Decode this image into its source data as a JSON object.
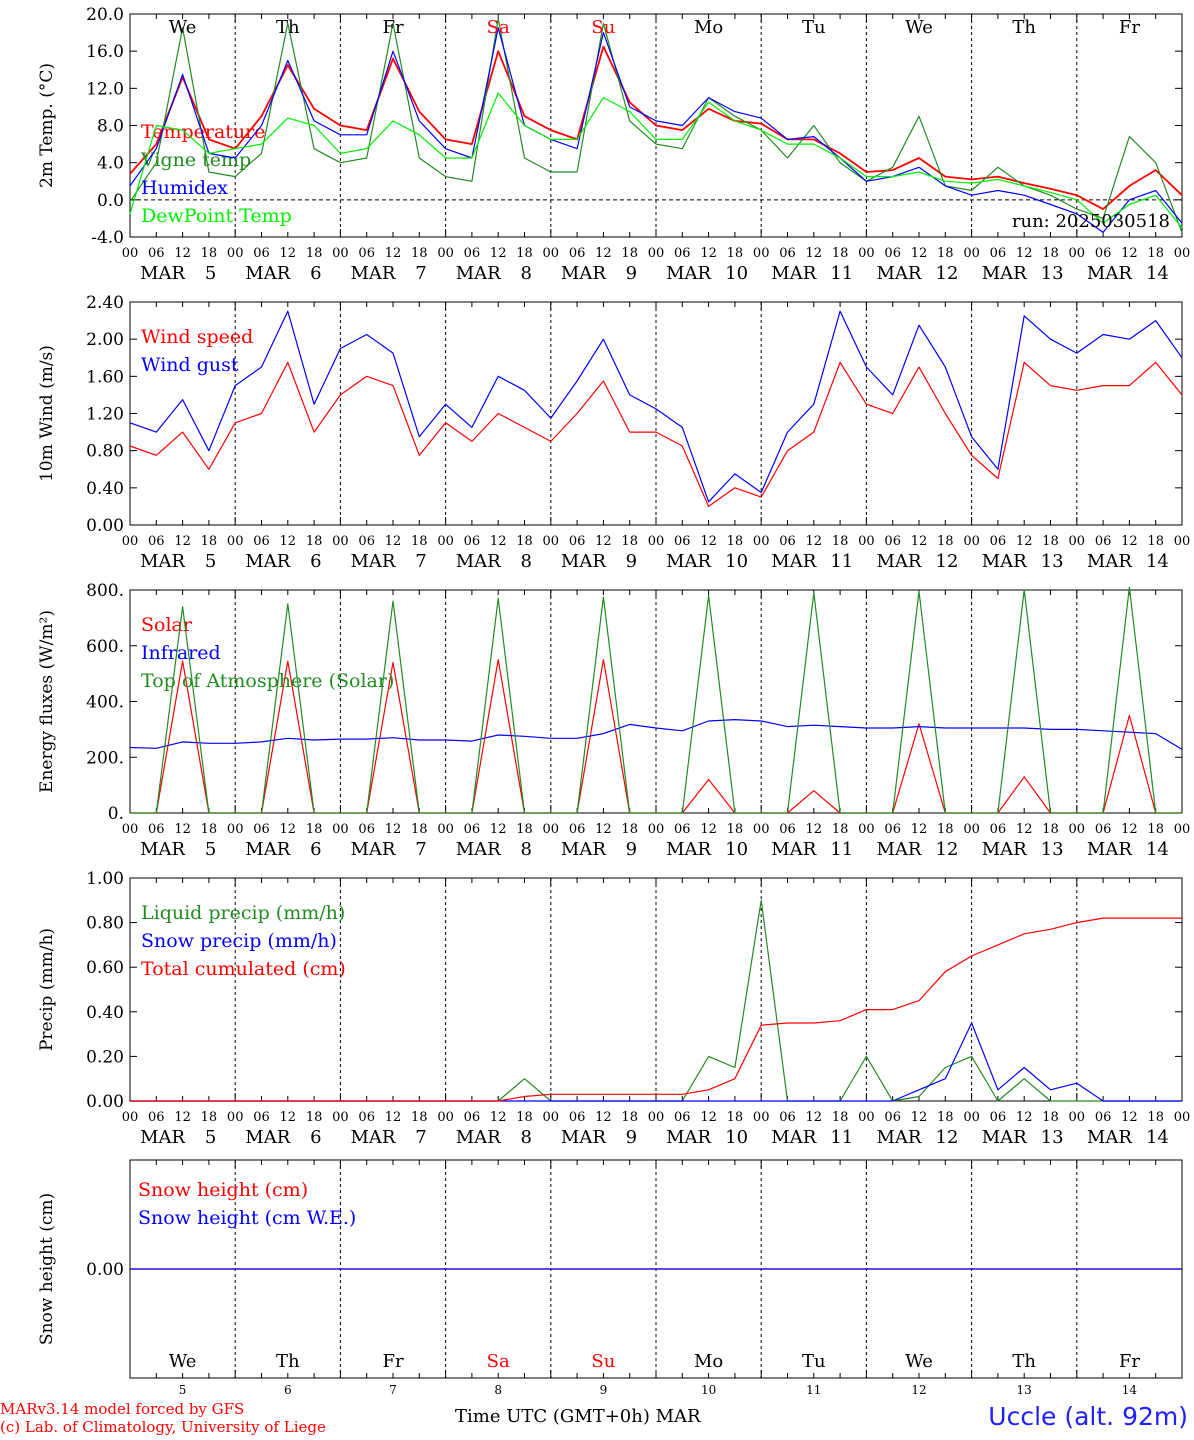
{
  "chart_data": [
    {
      "type": "line",
      "ylabel": "2m Temp. (°C)",
      "ylim": [
        -4,
        20
      ],
      "yticks": [
        "-4.0",
        "0.0",
        "4.0",
        "8.0",
        "12.0",
        "16.0",
        "20.0"
      ],
      "zero_line": true,
      "run_label": "run: 2025030518",
      "x_hours": [
        0,
        6,
        12,
        18,
        24,
        30,
        36,
        42,
        48,
        54,
        60,
        66,
        72,
        78,
        84,
        90,
        96,
        102,
        108,
        114,
        120,
        126,
        132,
        138,
        144,
        150,
        156,
        162,
        168,
        174,
        180,
        186,
        192,
        198,
        204,
        210,
        216,
        222,
        228,
        234,
        240
      ],
      "series": [
        {
          "name": "Temperature",
          "color": "#ff0000",
          "values": [
            2.8,
            6.0,
            13.2,
            6.5,
            5.5,
            9.0,
            14.5,
            9.8,
            8.0,
            7.5,
            15.2,
            9.5,
            6.5,
            6.0,
            16.0,
            9.0,
            7.5,
            6.5,
            16.5,
            10.5,
            8.0,
            7.5,
            9.8,
            8.5,
            8.2,
            6.5,
            6.5,
            5.0,
            3.0,
            3.2,
            4.5,
            2.5,
            2.2,
            2.5,
            1.8,
            1.2,
            0.5,
            -1.0,
            1.5,
            3.2,
            0.5
          ]
        },
        {
          "name": "Vigne temp",
          "color": "#228b22",
          "values": [
            -0.2,
            4.0,
            18.5,
            3.0,
            2.5,
            5.0,
            19.0,
            5.5,
            4.0,
            4.5,
            19.0,
            4.5,
            2.5,
            2.0,
            19.5,
            4.5,
            3.0,
            3.0,
            19.0,
            8.5,
            6.0,
            5.5,
            11.0,
            9.0,
            7.5,
            4.5,
            8.0,
            4.0,
            2.0,
            3.5,
            9.0,
            1.5,
            1.0,
            3.5,
            1.5,
            0.5,
            -1.0,
            -2.0,
            6.8,
            4.0,
            -3.5
          ]
        },
        {
          "name": "Humidex",
          "color": "#0000ff",
          "values": [
            1.5,
            5.5,
            13.5,
            5.0,
            4.5,
            8.0,
            15.0,
            8.5,
            7.0,
            7.0,
            16.0,
            8.5,
            5.5,
            4.5,
            18.5,
            8.0,
            6.5,
            5.5,
            18.0,
            10.0,
            8.5,
            8.0,
            11.0,
            9.5,
            8.8,
            6.5,
            6.8,
            4.5,
            2.0,
            2.5,
            3.5,
            1.5,
            0.5,
            1.0,
            0.5,
            -0.5,
            -1.5,
            -3.5,
            0.0,
            1.0,
            -2.5
          ]
        },
        {
          "name": "DewPoint Temp",
          "color": "#00ee00",
          "values": [
            -1.5,
            8.0,
            7.5,
            5.0,
            5.5,
            6.0,
            8.8,
            8.0,
            5.0,
            5.5,
            8.5,
            7.0,
            4.5,
            4.5,
            11.5,
            8.0,
            6.5,
            6.5,
            11.0,
            9.5,
            6.5,
            6.5,
            10.5,
            8.5,
            7.5,
            6.0,
            6.0,
            4.5,
            2.5,
            2.5,
            3.0,
            2.0,
            1.8,
            2.2,
            1.5,
            0.8,
            0.0,
            -2.5,
            -0.5,
            0.5,
            -3.0
          ]
        }
      ]
    },
    {
      "type": "line",
      "ylabel": "10m Wind (m/s)",
      "ylim": [
        0,
        2.4
      ],
      "yticks": [
        "0.00",
        "0.40",
        "0.80",
        "1.20",
        "1.60",
        "2.00",
        "2.40"
      ],
      "x_hours": [
        0,
        6,
        12,
        18,
        24,
        30,
        36,
        42,
        48,
        54,
        60,
        66,
        72,
        78,
        84,
        90,
        96,
        102,
        108,
        114,
        120,
        126,
        132,
        138,
        144,
        150,
        156,
        162,
        168,
        174,
        180,
        186,
        192,
        198,
        204,
        210,
        216,
        222,
        228,
        234,
        240
      ],
      "series": [
        {
          "name": "Wind speed",
          "color": "#ff0000",
          "values": [
            0.85,
            0.75,
            1.0,
            0.6,
            1.1,
            1.2,
            1.75,
            1.0,
            1.4,
            1.6,
            1.5,
            0.75,
            1.1,
            0.9,
            1.2,
            1.05,
            0.9,
            1.2,
            1.55,
            1.0,
            1.0,
            0.85,
            0.2,
            0.4,
            0.3,
            0.8,
            1.0,
            1.75,
            1.3,
            1.2,
            1.7,
            1.2,
            0.75,
            0.5,
            1.75,
            1.5,
            1.45,
            1.5,
            1.5,
            1.75,
            1.4
          ]
        },
        {
          "name": "Wind gust",
          "color": "#0000ff",
          "values": [
            1.1,
            1.0,
            1.35,
            0.8,
            1.5,
            1.7,
            2.3,
            1.3,
            1.9,
            2.05,
            1.85,
            0.95,
            1.3,
            1.05,
            1.6,
            1.45,
            1.15,
            1.55,
            2.0,
            1.4,
            1.25,
            1.05,
            0.25,
            0.55,
            0.35,
            1.0,
            1.3,
            2.3,
            1.7,
            1.4,
            2.15,
            1.7,
            0.95,
            0.6,
            2.25,
            2.0,
            1.85,
            2.05,
            2.0,
            2.2,
            1.8
          ]
        }
      ]
    },
    {
      "type": "line",
      "ylabel": "Energy fluxes (W/m²)",
      "ylim": [
        0,
        800
      ],
      "yticks": [
        "0.",
        "200.",
        "400.",
        "600.",
        "800."
      ],
      "x_hours": [
        0,
        6,
        12,
        18,
        24,
        30,
        36,
        42,
        48,
        54,
        60,
        66,
        72,
        78,
        84,
        90,
        96,
        102,
        108,
        114,
        120,
        126,
        132,
        138,
        144,
        150,
        156,
        162,
        168,
        174,
        180,
        186,
        192,
        198,
        204,
        210,
        216,
        222,
        228,
        234,
        240
      ],
      "series": [
        {
          "name": "Solar",
          "color": "#ff0000",
          "values": [
            0,
            0,
            545,
            0,
            0,
            0,
            545,
            0,
            0,
            0,
            540,
            0,
            0,
            0,
            550,
            0,
            0,
            0,
            550,
            0,
            0,
            0,
            120,
            0,
            0,
            0,
            80,
            0,
            0,
            0,
            320,
            0,
            0,
            0,
            130,
            0,
            0,
            0,
            350,
            0,
            0
          ]
        },
        {
          "name": "Infrared",
          "color": "#0000ff",
          "values": [
            235,
            232,
            255,
            250,
            250,
            255,
            268,
            262,
            265,
            265,
            270,
            262,
            262,
            258,
            280,
            275,
            268,
            268,
            285,
            318,
            305,
            295,
            330,
            335,
            330,
            310,
            315,
            310,
            305,
            305,
            310,
            305,
            305,
            305,
            305,
            300,
            300,
            295,
            290,
            285,
            228
          ]
        },
        {
          "name": "Top of Atmosphere (Solar)",
          "color": "#228b22",
          "values": [
            0,
            0,
            740,
            0,
            0,
            0,
            750,
            0,
            0,
            0,
            760,
            0,
            0,
            0,
            770,
            0,
            0,
            0,
            775,
            0,
            0,
            0,
            780,
            0,
            0,
            0,
            790,
            0,
            0,
            0,
            795,
            0,
            0,
            0,
            800,
            0,
            0,
            0,
            810,
            0,
            0
          ]
        }
      ]
    },
    {
      "type": "line",
      "ylabel": "Precip (mm/h)",
      "ylim": [
        0,
        1
      ],
      "yticks": [
        "0.00",
        "0.20",
        "0.40",
        "0.60",
        "0.80",
        "1.00"
      ],
      "x_hours": [
        0,
        6,
        12,
        18,
        24,
        30,
        36,
        42,
        48,
        54,
        60,
        66,
        72,
        78,
        84,
        90,
        96,
        102,
        108,
        114,
        120,
        126,
        132,
        138,
        144,
        150,
        156,
        162,
        168,
        174,
        180,
        186,
        192,
        198,
        204,
        210,
        216,
        222,
        228,
        234,
        240
      ],
      "series": [
        {
          "name": "Liquid precip (mm/h)",
          "color": "#228b22",
          "values": [
            0,
            0,
            0,
            0,
            0,
            0,
            0,
            0,
            0,
            0,
            0,
            0,
            0,
            0,
            0,
            0.1,
            0,
            0,
            0,
            0,
            0,
            0,
            0.2,
            0.15,
            0.9,
            0,
            0,
            0,
            0.2,
            0,
            0.02,
            0.15,
            0.2,
            0,
            0.1,
            0,
            0,
            0,
            0,
            0,
            0
          ]
        },
        {
          "name": "Snow precip (mm/h)",
          "color": "#0000ff",
          "values": [
            0,
            0,
            0,
            0,
            0,
            0,
            0,
            0,
            0,
            0,
            0,
            0,
            0,
            0,
            0,
            0,
            0,
            0,
            0,
            0,
            0,
            0,
            0,
            0,
            0,
            0,
            0,
            0,
            0,
            0,
            0.05,
            0.1,
            0.35,
            0.05,
            0.15,
            0.05,
            0.08,
            0,
            0,
            0,
            0
          ]
        },
        {
          "name": "Total cumulated (cm)",
          "color": "#ff0000",
          "values": [
            0,
            0,
            0,
            0,
            0,
            0,
            0,
            0,
            0,
            0,
            0,
            0,
            0,
            0,
            0,
            0.02,
            0.03,
            0.03,
            0.03,
            0.03,
            0.03,
            0.03,
            0.05,
            0.1,
            0.34,
            0.35,
            0.35,
            0.36,
            0.41,
            0.41,
            0.45,
            0.58,
            0.65,
            0.7,
            0.75,
            0.77,
            0.8,
            0.82,
            0.82,
            0.82,
            0.82
          ]
        }
      ]
    },
    {
      "type": "line",
      "ylabel": "Snow height (cm)",
      "ylim": [
        -1,
        1
      ],
      "yticks": [
        "0.00"
      ],
      "x_hours": [
        0,
        240
      ],
      "series": [
        {
          "name": "Snow height (cm)",
          "color": "#ff0000",
          "values": [
            0,
            0
          ]
        },
        {
          "name": "Snow height (cm W.E.)",
          "color": "#0000ff",
          "values": [
            0,
            0
          ]
        }
      ]
    }
  ],
  "axes": {
    "hour_ticks": [
      "00",
      "06",
      "12",
      "18"
    ],
    "end_hour_tick": "00",
    "month": "MAR",
    "date_labels": [
      "5",
      "6",
      "7",
      "8",
      "9",
      "10",
      "11",
      "12",
      "13",
      "14"
    ],
    "weekdays": [
      {
        "label": "We",
        "color": "#000000"
      },
      {
        "label": "Th",
        "color": "#000000"
      },
      {
        "label": "Fr",
        "color": "#000000"
      },
      {
        "label": "Sa",
        "color": "#ff0000"
      },
      {
        "label": "Su",
        "color": "#ff0000"
      },
      {
        "label": "Mo",
        "color": "#000000"
      },
      {
        "label": "Tu",
        "color": "#000000"
      },
      {
        "label": "We",
        "color": "#000000"
      },
      {
        "label": "Th",
        "color": "#000000"
      },
      {
        "label": "Fr",
        "color": "#000000"
      }
    ],
    "x_title": "Time UTC (GMT+0h)",
    "x_title_month": "MAR"
  },
  "footer": {
    "credit_line1": "MARv3.14 model forced by GFS",
    "credit_line2": "(c) Lab. of Climatology, University of Liege",
    "station": "Uccle (alt. 92m)",
    "station_color": "#2020ff",
    "credit_color": "#ff0000"
  }
}
